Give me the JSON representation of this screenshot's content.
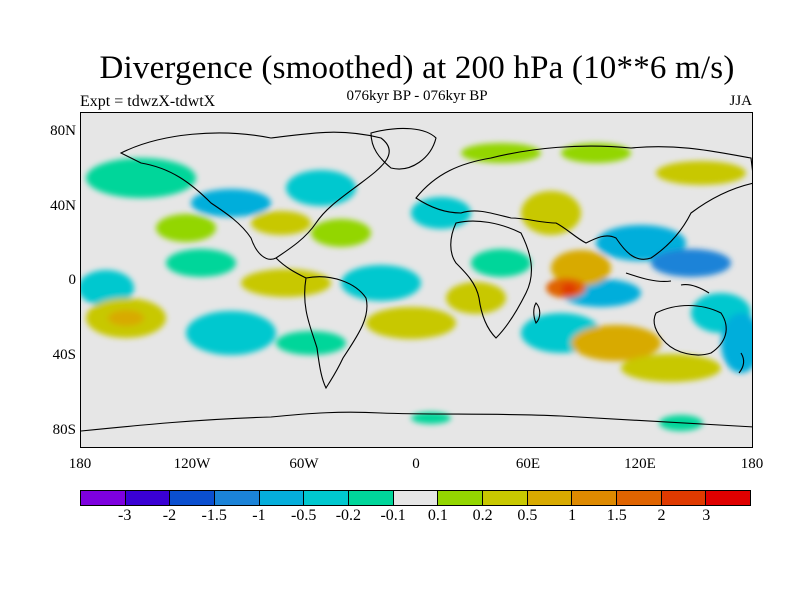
{
  "header": {
    "title": "Divergence (smoothed) at 200 hPa (10**6 m/s)",
    "experiment": "Expt = tdwzX-tdwtX",
    "period": "076kyr BP - 076kyr BP",
    "season": "JJA"
  },
  "map": {
    "y_ticks": [
      "80N",
      "40N",
      "0",
      "40S",
      "80S"
    ],
    "x_ticks": [
      "180",
      "120W",
      "60W",
      "0",
      "60E",
      "120E",
      "180"
    ],
    "background_color": "#e6e6e6"
  },
  "colorbar": {
    "labels": [
      "-3",
      "-2",
      "-1.5",
      "-1",
      "-0.5",
      "-0.2",
      "-0.1",
      "0.1",
      "0.2",
      "0.5",
      "1",
      "1.5",
      "2",
      "3"
    ],
    "colors": [
      "#7e00df",
      "#3a00d5",
      "#0b4fd0",
      "#1b83d8",
      "#05aedb",
      "#00c8cf",
      "#00d69a",
      "#e6e6e6",
      "#93d600",
      "#c8c800",
      "#d8aa00",
      "#de8a00",
      "#e06400",
      "#e03a00",
      "#e00000"
    ]
  }
}
